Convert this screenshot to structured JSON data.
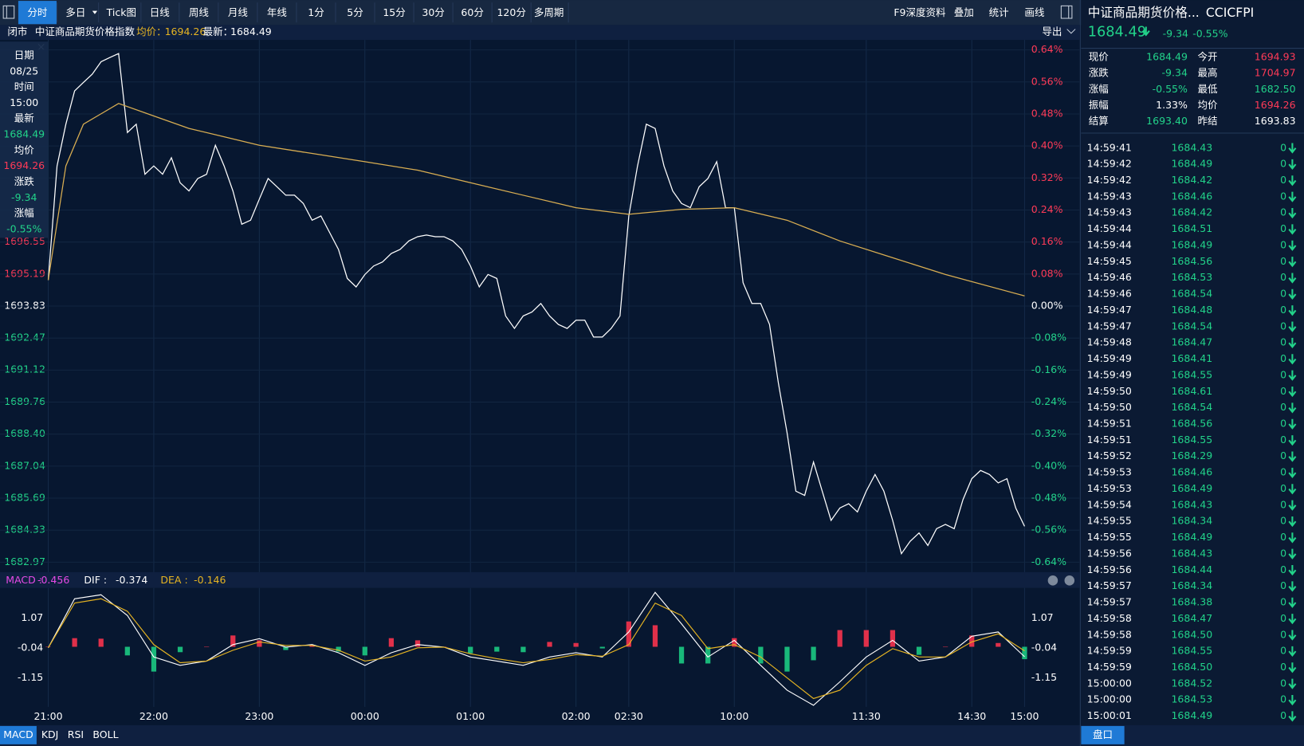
{
  "toolbar": {
    "tabs": [
      "分时",
      "多日",
      "Tick图",
      "日线",
      "周线",
      "月线",
      "年线",
      "1分",
      "5分",
      "15分",
      "30分",
      "60分",
      "120分",
      "多周期"
    ],
    "active": 0,
    "right": [
      "F9深度资料",
      "叠加",
      "统计",
      "画线"
    ]
  },
  "chart_header": {
    "status": "闭市",
    "name": "中证商品期货价格指数",
    "avg_label": "均价：",
    "avg": "1694.26",
    "last_label": "最新：",
    "last": "1684.49",
    "export": "导出"
  },
  "tooltip": {
    "rows": [
      {
        "label": "日期",
        "value": "08/25",
        "color": "#ffffff"
      },
      {
        "label": "时间",
        "value": "15:00",
        "color": "#ffffff"
      },
      {
        "label": "最新",
        "value": "1684.49",
        "color": "#22d38a"
      },
      {
        "label": "均价",
        "value": "1694.26",
        "color": "#ff3a57"
      },
      {
        "label": "涨跌",
        "value": "-9.34",
        "color": "#22d38a"
      },
      {
        "label": "涨幅",
        "value": "-0.55%",
        "color": "#22d38a"
      }
    ]
  },
  "quote": {
    "title": "中证商品期货价格...",
    "code": "CCICFPI",
    "price": "1684.49",
    "change": "-9.34",
    "pct": "-0.55%",
    "grid": [
      [
        {
          "label": "现价",
          "value": "1684.49",
          "color": "#22d38a"
        },
        {
          "label": "今开",
          "value": "1694.93",
          "color": "#ff3a57"
        }
      ],
      [
        {
          "label": "涨跌",
          "value": "-9.34",
          "color": "#22d38a"
        },
        {
          "label": "最高",
          "value": "1704.97",
          "color": "#ff3a57"
        }
      ],
      [
        {
          "label": "涨幅",
          "value": "-0.55%",
          "color": "#22d38a"
        },
        {
          "label": "最低",
          "value": "1682.50",
          "color": "#22d38a"
        }
      ],
      [
        {
          "label": "振幅",
          "value": "1.33%",
          "color": "#ffffff"
        },
        {
          "label": "均价",
          "value": "1694.26",
          "color": "#ff3a57"
        }
      ],
      [
        {
          "label": "结算",
          "value": "1693.40",
          "color": "#22d38a"
        },
        {
          "label": "昨结",
          "value": "1693.83",
          "color": "#ffffff"
        }
      ]
    ]
  },
  "trades": [
    [
      "14:59:41",
      "1684.43",
      "0"
    ],
    [
      "14:59:42",
      "1684.49",
      "0"
    ],
    [
      "14:59:42",
      "1684.42",
      "0"
    ],
    [
      "14:59:43",
      "1684.46",
      "0"
    ],
    [
      "14:59:43",
      "1684.42",
      "0"
    ],
    [
      "14:59:44",
      "1684.51",
      "0"
    ],
    [
      "14:59:44",
      "1684.49",
      "0"
    ],
    [
      "14:59:45",
      "1684.56",
      "0"
    ],
    [
      "14:59:46",
      "1684.53",
      "0"
    ],
    [
      "14:59:46",
      "1684.54",
      "0"
    ],
    [
      "14:59:47",
      "1684.48",
      "0"
    ],
    [
      "14:59:47",
      "1684.54",
      "0"
    ],
    [
      "14:59:48",
      "1684.47",
      "0"
    ],
    [
      "14:59:49",
      "1684.41",
      "0"
    ],
    [
      "14:59:49",
      "1684.55",
      "0"
    ],
    [
      "14:59:50",
      "1684.61",
      "0"
    ],
    [
      "14:59:50",
      "1684.54",
      "0"
    ],
    [
      "14:59:51",
      "1684.56",
      "0"
    ],
    [
      "14:59:51",
      "1684.55",
      "0"
    ],
    [
      "14:59:52",
      "1684.29",
      "0"
    ],
    [
      "14:59:53",
      "1684.46",
      "0"
    ],
    [
      "14:59:53",
      "1684.49",
      "0"
    ],
    [
      "14:59:54",
      "1684.43",
      "0"
    ],
    [
      "14:59:55",
      "1684.34",
      "0"
    ],
    [
      "14:59:55",
      "1684.49",
      "0"
    ],
    [
      "14:59:56",
      "1684.43",
      "0"
    ],
    [
      "14:59:56",
      "1684.44",
      "0"
    ],
    [
      "14:59:57",
      "1684.34",
      "0"
    ],
    [
      "14:59:57",
      "1684.38",
      "0"
    ],
    [
      "14:59:58",
      "1684.47",
      "0"
    ],
    [
      "14:59:58",
      "1684.50",
      "0"
    ],
    [
      "14:59:59",
      "1684.55",
      "0"
    ],
    [
      "14:59:59",
      "1684.50",
      "0"
    ],
    [
      "15:00:00",
      "1684.52",
      "0"
    ],
    [
      "15:00:00",
      "1684.53",
      "0"
    ],
    [
      "15:00:01",
      "1684.49",
      "0"
    ]
  ],
  "indicator_tabs": [
    "MACD",
    "KDJ",
    "RSI",
    "BOLL"
  ],
  "indicator_active": 0,
  "side_tab": "盘口",
  "chart_data": [
    {
      "type": "line",
      "xlim": [
        0,
        555
      ],
      "ylim": [
        1682.97,
        1704.69
      ],
      "y2lim": [
        -0.64,
        0.64
      ],
      "yticks": [
        1682.97,
        1684.33,
        1685.69,
        1687.04,
        {
          "value": 1688.4,
          "label": "1688.40"
        },
        1689.76,
        1691.12,
        1692.47,
        1693.83,
        1695.19,
        1696.55
      ],
      "y2ticks": [
        {
          "value": 0.64,
          "label": "0.64%"
        },
        {
          "value": 0.56,
          "label": "0.56%"
        },
        {
          "value": 0.48,
          "label": "0.48%"
        },
        {
          "value": 0.4,
          "label": "0.40%"
        },
        {
          "value": 0.32,
          "label": "0.32%"
        },
        {
          "value": 0.24,
          "label": "0.24%"
        },
        {
          "value": 0.16,
          "label": "0.16%"
        },
        {
          "value": 0.08,
          "label": "0.08%"
        },
        {
          "value": 0,
          "label": "0.00%"
        },
        {
          "value": -0.08,
          "label": "-0.08%"
        },
        {
          "value": -0.16,
          "label": "-0.16%"
        },
        {
          "value": -0.24,
          "label": "-0.24%"
        },
        {
          "value": -0.32,
          "label": "-0.32%"
        },
        {
          "value": -0.4,
          "label": "-0.40%"
        },
        {
          "value": -0.48,
          "label": "-0.48%"
        },
        {
          "value": -0.56,
          "label": "-0.56%"
        },
        {
          "value": -0.64,
          "label": "-0.64%"
        }
      ],
      "grid": true,
      "series": [
        {
          "color": "#ffffff",
          "x": [
            0,
            5,
            10,
            15,
            20,
            25,
            30,
            35,
            40,
            45,
            50,
            55,
            60,
            65,
            70,
            75,
            80,
            85,
            90,
            95,
            100,
            105,
            110,
            115,
            120,
            125,
            130,
            135,
            140,
            145,
            150,
            155,
            160,
            165,
            170,
            175,
            180,
            185,
            190,
            195,
            200,
            205,
            210,
            215,
            220,
            225,
            230,
            235,
            240,
            245,
            250,
            255,
            260,
            265,
            270,
            275,
            280,
            285,
            290,
            295,
            300,
            305,
            310,
            315,
            320,
            325,
            330,
            335,
            340,
            345,
            350,
            355,
            360,
            365,
            370,
            375,
            380,
            385,
            390,
            395,
            400,
            405,
            410,
            415,
            420,
            425,
            430,
            435,
            440,
            445,
            450,
            455,
            460,
            465,
            470,
            475,
            480,
            485,
            490,
            495,
            500,
            505,
            510,
            515,
            520,
            525,
            530,
            535,
            540,
            545,
            550,
            555
          ],
          "values": [
            1694.93,
            1699.77,
            1701.54,
            1702.95,
            1703.31,
            1703.66,
            1704.19,
            1704.37,
            1704.54,
            1701.19,
            1701.54,
            1699.42,
            1699.77,
            1699.42,
            1700.12,
            1699.06,
            1698.71,
            1699.24,
            1699.42,
            1700.65,
            1699.77,
            1698.71,
            1697.3,
            1697.47,
            1698.36,
            1699.24,
            1698.89,
            1698.53,
            1698.53,
            1698.18,
            1697.47,
            1697.65,
            1696.94,
            1696.23,
            1695.0,
            1694.64,
            1695.17,
            1695.53,
            1695.7,
            1696.06,
            1696.23,
            1696.59,
            1696.77,
            1696.84,
            1696.77,
            1696.77,
            1696.59,
            1696.23,
            1695.53,
            1694.64,
            1695.17,
            1695.0,
            1693.41,
            1692.88,
            1693.41,
            1693.58,
            1693.94,
            1693.41,
            1693.05,
            1692.88,
            1693.23,
            1693.23,
            1692.52,
            1692.52,
            1692.88,
            1693.41,
            1697.65,
            1699.77,
            1701.54,
            1701.36,
            1699.77,
            1698.71,
            1698.18,
            1698.0,
            1698.89,
            1699.24,
            1699.95,
            1698.0,
            1698.0,
            1694.82,
            1693.94,
            1693.94,
            1693.05,
            1690.58,
            1688.46,
            1685.98,
            1685.8,
            1687.22,
            1685.98,
            1684.74,
            1685.27,
            1685.45,
            1685.1,
            1685.98,
            1686.69,
            1685.98,
            1684.74,
            1683.33,
            1683.86,
            1684.21,
            1683.68,
            1684.39,
            1684.57,
            1684.39,
            1685.63,
            1686.51,
            1686.86,
            1686.69,
            1686.33,
            1686.51,
            1685.27,
            1684.49
          ]
        },
        {
          "color": "#d9ae52",
          "x": [
            0,
            10,
            20,
            40,
            60,
            80,
            100,
            120,
            150,
            180,
            210,
            240,
            270,
            300,
            330,
            360,
            390,
            420,
            450,
            480,
            510,
            555
          ],
          "values": [
            1694.93,
            1699.77,
            1701.54,
            1702.42,
            1701.89,
            1701.36,
            1701.01,
            1700.65,
            1700.3,
            1699.95,
            1699.59,
            1699.06,
            1698.53,
            1698.0,
            1697.72,
            1697.93,
            1698.0,
            1697.47,
            1696.59,
            1695.88,
            1695.17,
            1694.26
          ]
        }
      ]
    },
    {
      "type": "macd",
      "xlim": [
        0,
        555
      ],
      "ylim": [
        -2.23,
        2.09
      ],
      "yticks": [
        1.07,
        -0.04,
        -1.15
      ],
      "xticks": [
        {
          "value": 0,
          "label": "21:00"
        },
        {
          "value": 60,
          "label": "22:00"
        },
        {
          "value": 120,
          "label": "23:00"
        },
        {
          "value": 180,
          "label": "00:00"
        },
        {
          "value": 240,
          "label": "01:00"
        },
        {
          "value": 300,
          "label": "02:00"
        },
        {
          "value": 330,
          "label": "02:30"
        },
        {
          "value": 390,
          "label": "10:00"
        },
        {
          "value": 465,
          "label": "11:30"
        },
        {
          "value": 525,
          "label": "14:30"
        },
        {
          "value": 555,
          "label": "15:00"
        }
      ],
      "legend": [
        {
          "label": "MACD : ",
          "value": "-0.456",
          "color": "#e64ae6"
        },
        {
          "label": "DIF : ",
          "value": "-0.374",
          "color": "#ffffff"
        },
        {
          "label": "DEA : ",
          "value": "-0.146",
          "color": "#e6b422"
        }
      ],
      "x": [
        0,
        15,
        30,
        45,
        60,
        75,
        90,
        105,
        120,
        135,
        150,
        165,
        180,
        195,
        210,
        225,
        240,
        255,
        270,
        285,
        300,
        315,
        330,
        345,
        360,
        375,
        390,
        405,
        420,
        435,
        450,
        465,
        480,
        495,
        510,
        525,
        540,
        555
      ],
      "series": [
        {
          "color": "#ffffff",
          "values": [
            -0.04,
            1.78,
            1.93,
            1.16,
            -0.38,
            -0.69,
            -0.53,
            0.08,
            0.3,
            -0.01,
            0.08,
            -0.22,
            -0.69,
            -0.22,
            0.08,
            -0.01,
            -0.38,
            -0.53,
            -0.69,
            -0.38,
            -0.22,
            -0.38,
            0.55,
            2.02,
            0.85,
            -0.38,
            0.24,
            -0.69,
            -1.61,
            -2.17,
            -1.3,
            -0.38,
            0.24,
            -0.53,
            -0.38,
            0.39,
            0.55,
            -0.37
          ]
        },
        {
          "color": "#e6b422",
          "values": [
            -0.04,
            1.62,
            1.78,
            1.32,
            0.08,
            -0.59,
            -0.53,
            -0.13,
            0.18,
            0.05,
            0.05,
            -0.13,
            -0.53,
            -0.38,
            -0.04,
            -0.01,
            -0.26,
            -0.44,
            -0.59,
            -0.47,
            -0.29,
            -0.35,
            0.08,
            1.62,
            1.16,
            -0.07,
            0.08,
            -0.38,
            -1.15,
            -1.92,
            -1.61,
            -0.69,
            -0.07,
            -0.38,
            -0.38,
            0.18,
            0.48,
            -0.15
          ]
        },
        {
          "color_up": "#e0304a",
          "color_down": "#19b87a",
          "values": [
            0,
            0.32,
            0.3,
            -0.32,
            -0.92,
            -0.2,
            0,
            0.42,
            0.24,
            -0.12,
            0.06,
            -0.18,
            -0.32,
            0.32,
            0.24,
            0,
            -0.24,
            -0.18,
            -0.2,
            0.18,
            0.14,
            -0.06,
            0.94,
            0.8,
            -0.62,
            -0.62,
            0.32,
            -0.62,
            -0.92,
            -0.5,
            0.62,
            0.62,
            0.62,
            -0.3,
            0,
            0.42,
            0.14,
            -0.46
          ]
        }
      ]
    }
  ]
}
